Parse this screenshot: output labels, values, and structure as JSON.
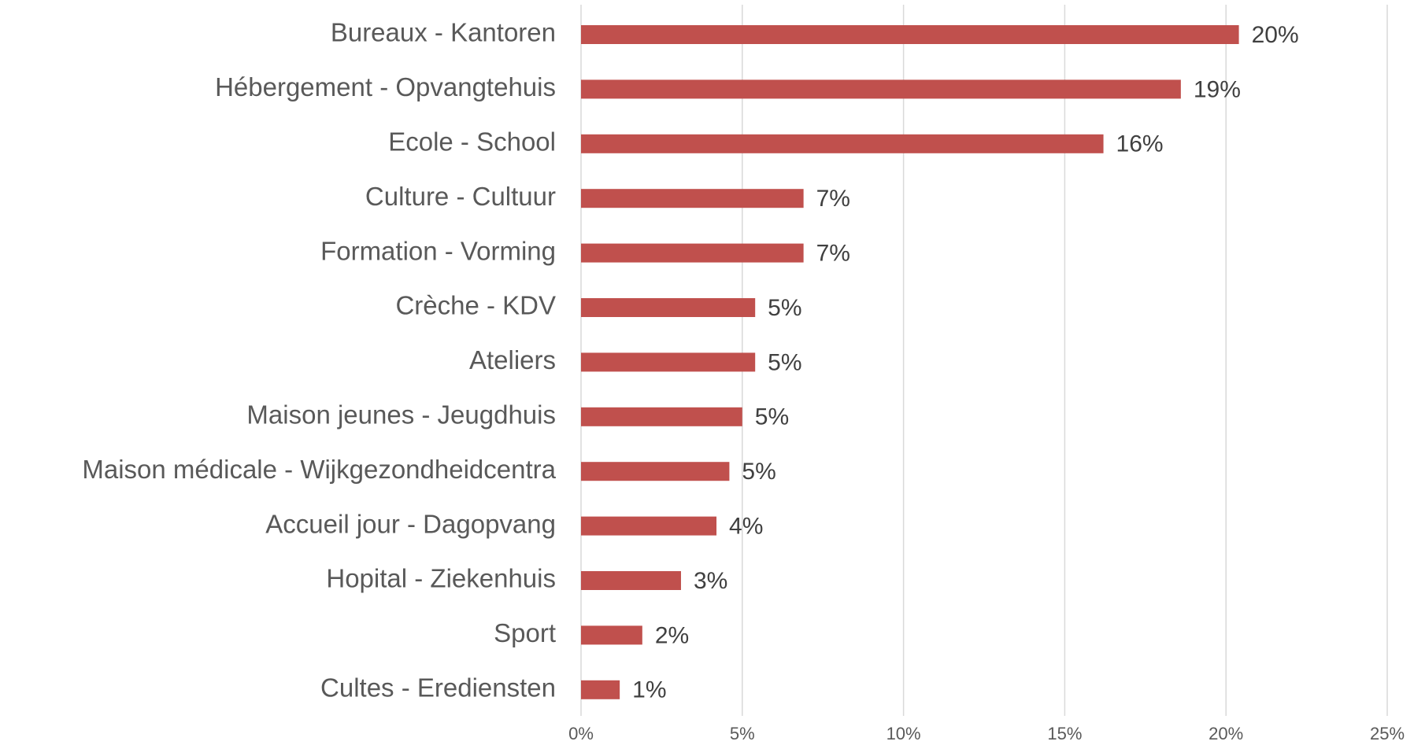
{
  "chart_data": {
    "type": "barh",
    "categories": [
      "Bureaux - Kantoren",
      "Hébergement - Opvangtehuis",
      "Ecole - School",
      "Culture - Cultuur",
      "Formation - Vorming",
      "Crèche - KDV",
      "Ateliers",
      "Maison jeunes - Jeugdhuis",
      "Maison médicale - Wijkgezondheidcentra",
      "Accueil jour - Dagopvang",
      "Hopital - Ziekenhuis",
      "Sport",
      "Cultes - Erediensten"
    ],
    "values": [
      20.4,
      18.6,
      16.2,
      6.9,
      6.9,
      5.4,
      5.4,
      5.0,
      4.6,
      4.2,
      3.1,
      1.9,
      1.2
    ],
    "value_labels": [
      "20%",
      "19%",
      "16%",
      "7%",
      "7%",
      "5%",
      "5%",
      "5%",
      "5%",
      "4%",
      "3%",
      "2%",
      "1%"
    ],
    "color": "#c0504d",
    "xlim": [
      0,
      25
    ],
    "xticks": [
      {
        "value": 0,
        "label": "0%"
      },
      {
        "value": 5,
        "label": "5%"
      },
      {
        "value": 10,
        "label": "10%"
      },
      {
        "value": 15,
        "label": "15%"
      },
      {
        "value": 20,
        "label": "20%"
      },
      {
        "value": 25,
        "label": "25%"
      }
    ],
    "grid": true
  }
}
